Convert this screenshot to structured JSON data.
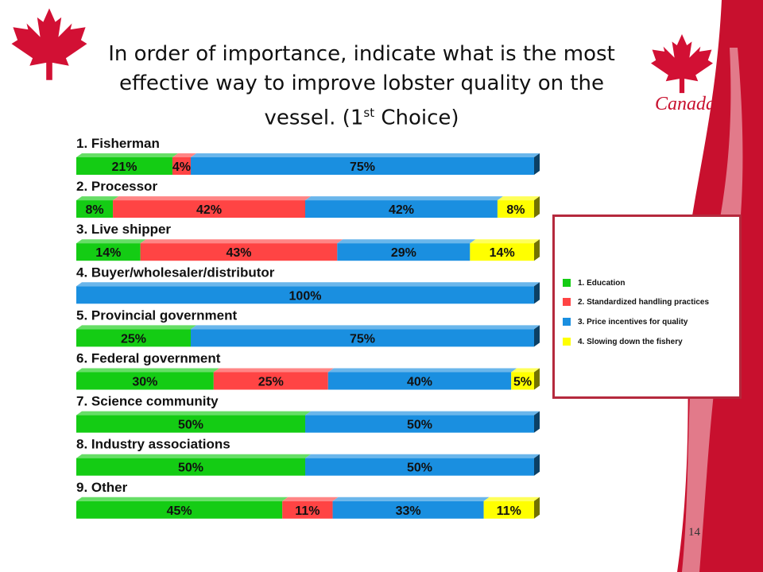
{
  "slide": {
    "title_main": "In order of importance, indicate what is the most effective way to improve lobster quality on the vessel. (1",
    "title_sup": "st",
    "title_end": " Choice)",
    "brand_word": "Canada",
    "page_number": "14"
  },
  "colors": {
    "brand_red": "#c8102e",
    "legend_border": "#b5293d"
  },
  "icons": [
    "maple-leaf-icon",
    "maple-leaf-icon"
  ],
  "chart_data": {
    "type": "bar",
    "orientation": "horizontal",
    "stacked": true,
    "percent": true,
    "title": "",
    "xlabel": "",
    "ylabel": "",
    "xlim": [
      0,
      100
    ],
    "grid": false,
    "legend_position": "right",
    "categories": [
      "1. Fisherman",
      "2. Processor",
      "3. Live shipper",
      "4. Buyer/wholesaler/distributor",
      "5. Provincial government",
      "6. Federal government",
      "7. Science community",
      "8. Industry associations",
      "9. Other"
    ],
    "series": [
      {
        "name": "1. Education",
        "color": "#14cc14",
        "values": [
          21,
          8,
          14,
          0,
          25,
          30,
          50,
          50,
          45
        ]
      },
      {
        "name": "2. Standardized handling practices",
        "color": "#ff4444",
        "values": [
          4,
          42,
          43,
          0,
          0,
          25,
          0,
          0,
          11
        ]
      },
      {
        "name": "3. Price incentives for quality",
        "color": "#1a8fe0",
        "values": [
          75,
          42,
          29,
          100,
          75,
          40,
          50,
          50,
          33
        ]
      },
      {
        "name": "4. Slowing down the fishery",
        "color": "#ffff00",
        "values": [
          0,
          8,
          14,
          0,
          0,
          5,
          0,
          0,
          11
        ]
      }
    ]
  }
}
